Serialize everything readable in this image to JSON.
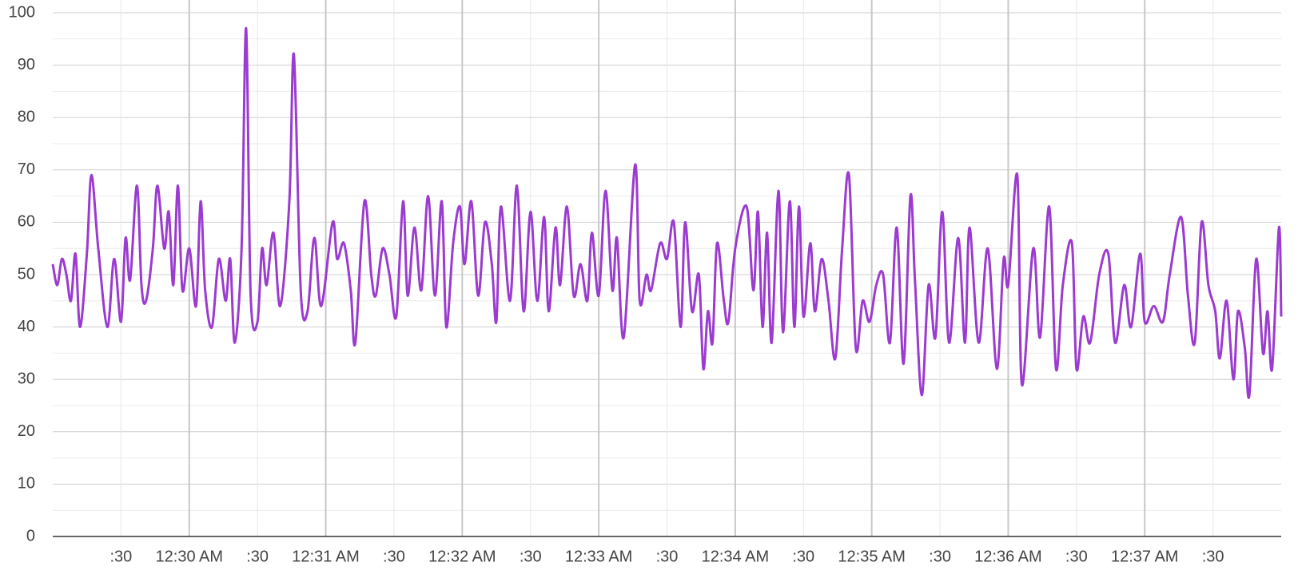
{
  "chart_data": {
    "type": "line",
    "x": [
      "12:29:00 AM",
      "12:29:02 AM",
      "12:29:04 AM",
      "12:29:06 AM",
      "12:29:08 AM",
      "12:29:10 AM",
      "12:29:12 AM",
      "12:29:15 AM",
      "12:29:17 AM",
      "12:29:20 AM",
      "12:29:24 AM",
      "12:29:27 AM",
      "12:29:30 AM",
      "12:29:32 AM",
      "12:29:34 AM",
      "12:29:37 AM",
      "12:29:39 AM",
      "12:29:41 AM",
      "12:29:44 AM",
      "12:29:46 AM",
      "12:29:49 AM",
      "12:29:51 AM",
      "12:29:53 AM",
      "12:29:55 AM",
      "12:29:57 AM",
      "12:30:00 AM",
      "12:30:03 AM",
      "12:30:05 AM",
      "12:30:07 AM",
      "12:30:10 AM",
      "12:30:13 AM",
      "12:30:16 AM",
      "12:30:18 AM",
      "12:30:20 AM",
      "12:30:23 AM",
      "12:30:25 AM",
      "12:30:27 AM",
      "12:30:30 AM",
      "12:30:32 AM",
      "12:30:34 AM",
      "12:30:37 AM",
      "12:30:40 AM",
      "12:30:44 AM",
      "12:30:46 AM",
      "12:30:49 AM",
      "12:30:52 AM",
      "12:30:55 AM",
      "12:30:58 AM",
      "12:31:03 AM",
      "12:31:05 AM",
      "12:31:08 AM",
      "12:31:11 AM",
      "12:31:13 AM",
      "12:31:17 AM",
      "12:31:20 AM",
      "12:31:22 AM",
      "12:31:25 AM",
      "12:31:28 AM",
      "12:31:31 AM",
      "12:31:34 AM",
      "12:31:36 AM",
      "12:31:39 AM",
      "12:31:42 AM",
      "12:31:45 AM",
      "12:31:48 AM",
      "12:31:51 AM",
      "12:31:53 AM",
      "12:31:56 AM",
      "12:31:59 AM",
      "12:32:01 AM",
      "12:32:04 AM",
      "12:32:07 AM",
      "12:32:10 AM",
      "12:32:13 AM",
      "12:32:15 AM",
      "12:32:17 AM",
      "12:32:21 AM",
      "12:32:24 AM",
      "12:32:27 AM",
      "12:32:30 AM",
      "12:32:33 AM",
      "12:32:36 AM",
      "12:32:38 AM",
      "12:32:41 AM",
      "12:32:43 AM",
      "12:32:46 AM",
      "12:32:49 AM",
      "12:32:52 AM",
      "12:32:55 AM",
      "12:32:57 AM",
      "12:33:00 AM",
      "12:33:03 AM",
      "12:33:06 AM",
      "12:33:08 AM",
      "12:33:11 AM",
      "12:33:16 AM",
      "12:33:18 AM",
      "12:33:21 AM",
      "12:33:23 AM",
      "12:33:27 AM",
      "12:33:30 AM",
      "12:33:33 AM",
      "12:33:36 AM",
      "12:33:38 AM",
      "12:33:41 AM",
      "12:33:44 AM",
      "12:33:46 AM",
      "12:33:48 AM",
      "12:33:50 AM",
      "12:33:52 AM",
      "12:33:55 AM",
      "12:33:57 AM",
      "12:34:00 AM",
      "12:34:05 AM",
      "12:34:08 AM",
      "12:34:10 AM",
      "12:34:12 AM",
      "12:34:14 AM",
      "12:34:16 AM",
      "12:34:19 AM",
      "12:34:21 AM",
      "12:34:24 AM",
      "12:34:26 AM",
      "12:34:28 AM",
      "12:34:30 AM",
      "12:34:33 AM",
      "12:34:35 AM",
      "12:34:38 AM",
      "12:34:41 AM",
      "12:34:44 AM",
      "12:34:47 AM",
      "12:34:50 AM",
      "12:34:53 AM",
      "12:34:56 AM",
      "12:34:59 AM",
      "12:35:02 AM",
      "12:35:05 AM",
      "12:35:08 AM",
      "12:35:11 AM",
      "12:35:14 AM",
      "12:35:17 AM",
      "12:35:19 AM",
      "12:35:22 AM",
      "12:35:25 AM",
      "12:35:28 AM",
      "12:35:31 AM",
      "12:35:34 AM",
      "12:35:38 AM",
      "12:35:41 AM",
      "12:35:43 AM",
      "12:35:47 AM",
      "12:35:51 AM",
      "12:35:55 AM",
      "12:35:58 AM",
      "12:36:00 AM",
      "12:36:04 AM",
      "12:36:06 AM",
      "12:36:11 AM",
      "12:36:14 AM",
      "12:36:18 AM",
      "12:36:21 AM",
      "12:36:24 AM",
      "12:36:28 AM",
      "12:36:30 AM",
      "12:36:33 AM",
      "12:36:36 AM",
      "12:36:40 AM",
      "12:36:44 AM",
      "12:36:47 AM",
      "12:36:51 AM",
      "12:36:54 AM",
      "12:36:58 AM",
      "12:37:00 AM",
      "12:37:04 AM",
      "12:37:08 AM",
      "12:37:11 AM",
      "12:37:16 AM",
      "12:37:19 AM",
      "12:37:22 AM",
      "12:37:25 AM",
      "12:37:28 AM",
      "12:37:31 AM",
      "12:37:33 AM",
      "12:37:36 AM",
      "12:37:39 AM",
      "12:37:41 AM",
      "12:37:44 AM",
      "12:37:46 AM",
      "12:37:49 AM",
      "12:37:52 AM",
      "12:37:54 AM",
      "12:37:56 AM",
      "12:37:59 AM",
      "12:38:00 AM"
    ],
    "series": [
      {
        "color": "#9b3bd0",
        "values": [
          52,
          48,
          53,
          50,
          45,
          54,
          40,
          54,
          69,
          55,
          40,
          53,
          41,
          57,
          49,
          67,
          48,
          45,
          55,
          67,
          55,
          62,
          48,
          67,
          47,
          55,
          44,
          64,
          47,
          40,
          53,
          45,
          53,
          37,
          55,
          97,
          46,
          41,
          55,
          48,
          58,
          44,
          64,
          92,
          47,
          43,
          57,
          44,
          60,
          53,
          56,
          47,
          37,
          64,
          50,
          46,
          55,
          50,
          42,
          64,
          46,
          59,
          47,
          65,
          46,
          64,
          40,
          56,
          63,
          52,
          64,
          46,
          60,
          52,
          41,
          63,
          45,
          67,
          43,
          62,
          45,
          61,
          43,
          59,
          48,
          63,
          46,
          52,
          45,
          58,
          46,
          66,
          47,
          57,
          38,
          71,
          45,
          50,
          47,
          56,
          53,
          60,
          40,
          60,
          43,
          50,
          32,
          43,
          37,
          56,
          45,
          41,
          55,
          63,
          47,
          62,
          40,
          58,
          37,
          66,
          39,
          64,
          40,
          63,
          42,
          56,
          43,
          53,
          45,
          34,
          55,
          69,
          36,
          45,
          41,
          48,
          50,
          37,
          59,
          33,
          65,
          49,
          27,
          48,
          38,
          62,
          37,
          57,
          37,
          59,
          37,
          55,
          32,
          53,
          48,
          69,
          29,
          55,
          38,
          63,
          32,
          48,
          56,
          32,
          42,
          37,
          50,
          54,
          37,
          48,
          40,
          54,
          41,
          44,
          41,
          50,
          61,
          46,
          37,
          60,
          48,
          43,
          34,
          45,
          30,
          43,
          36,
          27,
          53,
          35,
          43,
          32,
          59,
          42
        ]
      }
    ],
    "xlim": [
      "12:29:00 AM",
      "12:38:00 AM"
    ],
    "xticks": [
      {
        "value": "12:29:30 AM",
        "label": ":30"
      },
      {
        "value": "12:30:00 AM",
        "label": "12:30 AM"
      },
      {
        "value": "12:30:30 AM",
        "label": ":30"
      },
      {
        "value": "12:31:00 AM",
        "label": "12:31 AM"
      },
      {
        "value": "12:31:30 AM",
        "label": ":30"
      },
      {
        "value": "12:32:00 AM",
        "label": "12:32 AM"
      },
      {
        "value": "12:32:30 AM",
        "label": ":30"
      },
      {
        "value": "12:33:00 AM",
        "label": "12:33 AM"
      },
      {
        "value": "12:33:30 AM",
        "label": ":30"
      },
      {
        "value": "12:34:00 AM",
        "label": "12:34 AM"
      },
      {
        "value": "12:34:30 AM",
        "label": ":30"
      },
      {
        "value": "12:35:00 AM",
        "label": "12:35 AM"
      },
      {
        "value": "12:35:30 AM",
        "label": ":30"
      },
      {
        "value": "12:36:00 AM",
        "label": "12:36 AM"
      },
      {
        "value": "12:36:30 AM",
        "label": ":30"
      },
      {
        "value": "12:37:00 AM",
        "label": "12:37 AM"
      },
      {
        "value": "12:37:30 AM",
        "label": ":30"
      }
    ],
    "ylim": [
      0,
      100
    ],
    "yticks": [
      0,
      10,
      20,
      30,
      40,
      50,
      60,
      70,
      80,
      90,
      100
    ],
    "yminorticks": [
      5,
      15,
      25,
      35,
      45,
      55,
      65,
      75,
      85,
      95
    ],
    "grid": true
  }
}
